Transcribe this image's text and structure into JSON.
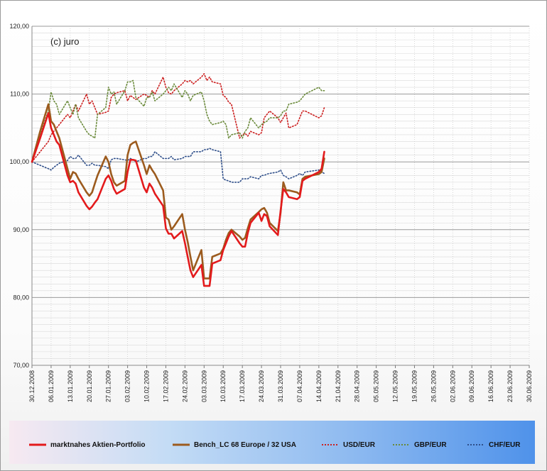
{
  "watermark": "(c) juro",
  "colors": {
    "portfolio": "#e31a1c",
    "bench": "#9c5b1e",
    "usd": "#cc2020",
    "gbp": "#6a8a3a",
    "chf": "#2f4f8a",
    "grid": "#9a9a9a",
    "minor_grid": "#d9d9d9"
  },
  "chart_data": {
    "type": "line",
    "ylim": [
      70,
      120
    ],
    "y_ticks": [
      "70,00",
      "80,00",
      "90,00",
      "100,00",
      "110,00",
      "120,00"
    ],
    "x_range": [
      "2008-12-30",
      "2009-06-30"
    ],
    "x_ticks": [
      "30.12.2008",
      "06.01.2009",
      "13.01.2009",
      "20.01.2009",
      "27.01.2009",
      "03.02.2009",
      "10.02.2009",
      "17.02.2009",
      "24.02.2009",
      "03.03.2009",
      "10.03.2009",
      "17.03.2009",
      "24.03.2009",
      "31.03.2009",
      "07.04.2009",
      "14.04.2009",
      "21.04.2009",
      "28.04.2009",
      "05.05.2009",
      "12.05.2009",
      "19.05.2009",
      "26.05.2009",
      "02.06.2009",
      "09.06.2009",
      "16.06.2009",
      "23.06.2009",
      "30.06.2009"
    ],
    "grid": true,
    "legend_position": "bottom",
    "series": [
      {
        "name": "marktnahes Aktien-Portfolio",
        "style": "solid",
        "x": [
          "2008-12-30",
          "2009-01-02",
          "2009-01-05",
          "2009-01-06",
          "2009-01-07",
          "2009-01-08",
          "2009-01-09",
          "2009-01-12",
          "2009-01-13",
          "2009-01-14",
          "2009-01-15",
          "2009-01-16",
          "2009-01-19",
          "2009-01-20",
          "2009-01-21",
          "2009-01-22",
          "2009-01-23",
          "2009-01-26",
          "2009-01-27",
          "2009-01-28",
          "2009-01-29",
          "2009-01-30",
          "2009-02-02",
          "2009-02-03",
          "2009-02-04",
          "2009-02-05",
          "2009-02-06",
          "2009-02-09",
          "2009-02-10",
          "2009-02-11",
          "2009-02-12",
          "2009-02-13",
          "2009-02-16",
          "2009-02-17",
          "2009-02-18",
          "2009-02-19",
          "2009-02-20",
          "2009-02-23",
          "2009-02-24",
          "2009-02-25",
          "2009-02-26",
          "2009-02-27",
          "2009-03-02",
          "2009-03-03",
          "2009-03-04",
          "2009-03-05",
          "2009-03-06",
          "2009-03-09",
          "2009-03-10",
          "2009-03-11",
          "2009-03-12",
          "2009-03-13",
          "2009-03-16",
          "2009-03-17",
          "2009-03-18",
          "2009-03-19",
          "2009-03-20",
          "2009-03-23",
          "2009-03-24",
          "2009-03-25",
          "2009-03-26",
          "2009-03-27",
          "2009-03-30",
          "2009-03-31",
          "2009-04-01",
          "2009-04-02",
          "2009-04-03",
          "2009-04-06",
          "2009-04-07",
          "2009-04-08",
          "2009-04-09",
          "2009-04-14",
          "2009-04-15",
          "2009-04-16"
        ],
        "y": [
          100.0,
          103.5,
          107.2,
          105.0,
          104.0,
          103.0,
          102.5,
          98.0,
          97.0,
          97.2,
          96.8,
          95.5,
          93.5,
          93.0,
          93.4,
          94.0,
          94.5,
          97.5,
          98.0,
          97.2,
          96.0,
          95.3,
          96.0,
          98.5,
          100.3,
          100.3,
          100.2,
          96.2,
          95.5,
          96.8,
          96.2,
          95.3,
          93.5,
          90.2,
          89.4,
          89.4,
          88.7,
          89.8,
          88.0,
          86.0,
          84.0,
          83.0,
          84.8,
          81.7,
          81.7,
          81.7,
          85.0,
          85.5,
          87.0,
          88.0,
          89.0,
          89.8,
          88.0,
          87.5,
          87.5,
          89.5,
          91.0,
          92.5,
          91.3,
          92.3,
          92.0,
          90.5,
          89.2,
          92.8,
          96.0,
          95.5,
          94.8,
          94.5,
          94.8,
          97.2,
          97.5,
          98.5,
          99.0,
          101.5
        ]
      },
      {
        "name": "Bench_LC  68 Europe / 32 USA",
        "style": "solid",
        "x": [
          "2008-12-30",
          "2009-01-02",
          "2009-01-05",
          "2009-01-06",
          "2009-01-07",
          "2009-01-08",
          "2009-01-09",
          "2009-01-12",
          "2009-01-13",
          "2009-01-14",
          "2009-01-15",
          "2009-01-16",
          "2009-01-19",
          "2009-01-20",
          "2009-01-21",
          "2009-01-22",
          "2009-01-23",
          "2009-01-26",
          "2009-01-27",
          "2009-01-28",
          "2009-01-29",
          "2009-01-30",
          "2009-02-02",
          "2009-02-03",
          "2009-02-04",
          "2009-02-05",
          "2009-02-06",
          "2009-02-09",
          "2009-02-10",
          "2009-02-11",
          "2009-02-12",
          "2009-02-13",
          "2009-02-16",
          "2009-02-17",
          "2009-02-18",
          "2009-02-19",
          "2009-02-20",
          "2009-02-23",
          "2009-02-24",
          "2009-02-25",
          "2009-02-26",
          "2009-02-27",
          "2009-03-02",
          "2009-03-03",
          "2009-03-04",
          "2009-03-05",
          "2009-03-06",
          "2009-03-09",
          "2009-03-10",
          "2009-03-11",
          "2009-03-12",
          "2009-03-13",
          "2009-03-16",
          "2009-03-17",
          "2009-03-18",
          "2009-03-19",
          "2009-03-20",
          "2009-03-23",
          "2009-03-24",
          "2009-03-25",
          "2009-03-26",
          "2009-03-27",
          "2009-03-30",
          "2009-03-31",
          "2009-04-01",
          "2009-04-02",
          "2009-04-03",
          "2009-04-06",
          "2009-04-07",
          "2009-04-08",
          "2009-04-09",
          "2009-04-14",
          "2009-04-15",
          "2009-04-16"
        ],
        "y": [
          100.0,
          104.5,
          108.5,
          106.0,
          105.5,
          104.5,
          103.5,
          99.0,
          97.5,
          98.5,
          98.3,
          97.5,
          95.5,
          95.0,
          95.5,
          96.8,
          98.0,
          100.8,
          100.0,
          98.2,
          97.0,
          96.5,
          97.2,
          101.0,
          102.5,
          102.8,
          103.0,
          99.5,
          98.2,
          99.5,
          98.8,
          98.2,
          95.8,
          91.8,
          91.5,
          90.0,
          90.5,
          92.3,
          90.0,
          88.2,
          86.0,
          84.0,
          87.0,
          82.8,
          82.8,
          82.8,
          86.0,
          86.5,
          87.2,
          88.5,
          89.5,
          90.0,
          89.0,
          88.5,
          88.8,
          90.2,
          91.5,
          92.6,
          93.0,
          93.2,
          92.5,
          91.0,
          89.8,
          92.5,
          97.0,
          95.8,
          95.8,
          95.5,
          95.2,
          97.5,
          97.8,
          98.2,
          98.5,
          100.5
        ]
      },
      {
        "name": "USD/EUR",
        "style": "dotted",
        "x": [
          "2008-12-30",
          "2009-01-02",
          "2009-01-05",
          "2009-01-06",
          "2009-01-07",
          "2009-01-08",
          "2009-01-09",
          "2009-01-12",
          "2009-01-13",
          "2009-01-14",
          "2009-01-15",
          "2009-01-16",
          "2009-01-19",
          "2009-01-20",
          "2009-01-21",
          "2009-01-22",
          "2009-01-23",
          "2009-01-26",
          "2009-01-27",
          "2009-01-28",
          "2009-01-29",
          "2009-01-30",
          "2009-02-02",
          "2009-02-03",
          "2009-02-04",
          "2009-02-05",
          "2009-02-06",
          "2009-02-09",
          "2009-02-10",
          "2009-02-11",
          "2009-02-12",
          "2009-02-13",
          "2009-02-16",
          "2009-02-17",
          "2009-02-18",
          "2009-02-19",
          "2009-02-20",
          "2009-02-23",
          "2009-02-24",
          "2009-02-25",
          "2009-02-26",
          "2009-02-27",
          "2009-03-02",
          "2009-03-03",
          "2009-03-04",
          "2009-03-05",
          "2009-03-06",
          "2009-03-09",
          "2009-03-10",
          "2009-03-11",
          "2009-03-12",
          "2009-03-13",
          "2009-03-16",
          "2009-03-17",
          "2009-03-18",
          "2009-03-19",
          "2009-03-20",
          "2009-03-23",
          "2009-03-24",
          "2009-03-25",
          "2009-03-26",
          "2009-03-27",
          "2009-03-30",
          "2009-03-31",
          "2009-04-01",
          "2009-04-02",
          "2009-04-03",
          "2009-04-06",
          "2009-04-07",
          "2009-04-08",
          "2009-04-09",
          "2009-04-14",
          "2009-04-15",
          "2009-04-16"
        ],
        "y": [
          100.0,
          101.5,
          103.0,
          104.0,
          104.5,
          105.0,
          105.5,
          107.0,
          106.5,
          107.5,
          108.5,
          107.5,
          110.0,
          108.5,
          109.0,
          108.0,
          107.0,
          107.3,
          107.5,
          109.5,
          110.0,
          110.2,
          110.5,
          109.0,
          109.8,
          109.5,
          109.2,
          110.0,
          109.8,
          109.5,
          110.5,
          110.0,
          112.5,
          111.0,
          110.2,
          110.0,
          110.5,
          111.5,
          112.0,
          111.8,
          112.0,
          111.5,
          112.5,
          113.0,
          112.0,
          112.5,
          111.8,
          111.5,
          109.8,
          109.5,
          108.8,
          108.5,
          103.5,
          104.0,
          104.2,
          103.8,
          104.5,
          104.0,
          104.3,
          106.5,
          107.0,
          107.5,
          106.5,
          105.8,
          106.5,
          107.2,
          105.0,
          105.5,
          106.5,
          107.5,
          107.5,
          106.5,
          106.8,
          108.0
        ]
      },
      {
        "name": "GBP/EUR",
        "style": "dotted",
        "x": [
          "2008-12-30",
          "2009-01-02",
          "2009-01-05",
          "2009-01-06",
          "2009-01-07",
          "2009-01-08",
          "2009-01-09",
          "2009-01-12",
          "2009-01-13",
          "2009-01-14",
          "2009-01-15",
          "2009-01-16",
          "2009-01-19",
          "2009-01-20",
          "2009-01-21",
          "2009-01-22",
          "2009-01-23",
          "2009-01-26",
          "2009-01-27",
          "2009-01-28",
          "2009-01-29",
          "2009-01-30",
          "2009-02-02",
          "2009-02-03",
          "2009-02-04",
          "2009-02-05",
          "2009-02-06",
          "2009-02-09",
          "2009-02-10",
          "2009-02-11",
          "2009-02-12",
          "2009-02-13",
          "2009-02-16",
          "2009-02-17",
          "2009-02-18",
          "2009-02-19",
          "2009-02-20",
          "2009-02-23",
          "2009-02-24",
          "2009-02-25",
          "2009-02-26",
          "2009-02-27",
          "2009-03-02",
          "2009-03-03",
          "2009-03-04",
          "2009-03-05",
          "2009-03-06",
          "2009-03-09",
          "2009-03-10",
          "2009-03-11",
          "2009-03-12",
          "2009-03-13",
          "2009-03-16",
          "2009-03-17",
          "2009-03-18",
          "2009-03-19",
          "2009-03-20",
          "2009-03-23",
          "2009-03-24",
          "2009-03-25",
          "2009-03-26",
          "2009-03-27",
          "2009-03-30",
          "2009-03-31",
          "2009-04-01",
          "2009-04-02",
          "2009-04-03",
          "2009-04-06",
          "2009-04-07",
          "2009-04-08",
          "2009-04-09",
          "2009-04-14",
          "2009-04-15",
          "2009-04-16"
        ],
        "y": [
          100.0,
          104.0,
          107.5,
          110.3,
          109.0,
          108.5,
          107.0,
          109.0,
          108.0,
          107.0,
          108.5,
          106.5,
          104.5,
          104.0,
          103.8,
          103.5,
          107.0,
          108.0,
          111.0,
          110.0,
          110.3,
          108.5,
          110.5,
          111.8,
          111.8,
          112.0,
          109.5,
          108.2,
          109.5,
          109.5,
          110.3,
          109.0,
          110.0,
          110.5,
          111.0,
          110.5,
          111.5,
          109.5,
          110.5,
          110.0,
          109.0,
          109.8,
          110.3,
          109.0,
          107.0,
          106.0,
          105.5,
          105.8,
          106.0,
          105.5,
          103.5,
          104.0,
          104.3,
          103.5,
          104.5,
          105.0,
          106.5,
          105.0,
          105.5,
          105.8,
          106.0,
          106.5,
          106.5,
          106.8,
          107.5,
          107.5,
          108.5,
          108.8,
          109.0,
          109.5,
          110.0,
          111.0,
          110.5,
          110.5
        ]
      },
      {
        "name": "CHF/EUR",
        "style": "dotted",
        "x": [
          "2008-12-30",
          "2009-01-02",
          "2009-01-05",
          "2009-01-06",
          "2009-01-07",
          "2009-01-08",
          "2009-01-09",
          "2009-01-12",
          "2009-01-13",
          "2009-01-14",
          "2009-01-15",
          "2009-01-16",
          "2009-01-19",
          "2009-01-20",
          "2009-01-21",
          "2009-01-22",
          "2009-01-23",
          "2009-01-26",
          "2009-01-27",
          "2009-01-28",
          "2009-01-29",
          "2009-01-30",
          "2009-02-02",
          "2009-02-03",
          "2009-02-04",
          "2009-02-05",
          "2009-02-06",
          "2009-02-09",
          "2009-02-10",
          "2009-02-11",
          "2009-02-12",
          "2009-02-13",
          "2009-02-16",
          "2009-02-17",
          "2009-02-18",
          "2009-02-19",
          "2009-02-20",
          "2009-02-23",
          "2009-02-24",
          "2009-02-25",
          "2009-02-26",
          "2009-02-27",
          "2009-03-02",
          "2009-03-03",
          "2009-03-04",
          "2009-03-05",
          "2009-03-06",
          "2009-03-09",
          "2009-03-10",
          "2009-03-11",
          "2009-03-12",
          "2009-03-13",
          "2009-03-16",
          "2009-03-17",
          "2009-03-18",
          "2009-03-19",
          "2009-03-20",
          "2009-03-23",
          "2009-03-24",
          "2009-03-25",
          "2009-03-26",
          "2009-03-27",
          "2009-03-30",
          "2009-03-31",
          "2009-04-01",
          "2009-04-02",
          "2009-04-03",
          "2009-04-06",
          "2009-04-07",
          "2009-04-08",
          "2009-04-09",
          "2009-04-14",
          "2009-04-15",
          "2009-04-16"
        ],
        "y": [
          100.0,
          99.5,
          99.0,
          98.8,
          99.2,
          99.5,
          99.8,
          100.2,
          100.8,
          100.5,
          100.5,
          101.0,
          99.5,
          99.5,
          99.8,
          99.5,
          99.5,
          99.3,
          99.0,
          100.3,
          100.5,
          100.5,
          100.3,
          100.2,
          100.5,
          100.3,
          100.0,
          100.5,
          100.5,
          100.8,
          100.8,
          101.5,
          100.5,
          100.5,
          100.5,
          100.8,
          100.3,
          100.5,
          100.8,
          100.8,
          100.8,
          101.5,
          101.5,
          101.8,
          101.8,
          102.0,
          101.8,
          101.5,
          97.5,
          97.3,
          97.2,
          97.0,
          97.0,
          97.5,
          97.5,
          97.5,
          97.8,
          97.5,
          98.0,
          98.0,
          98.2,
          98.3,
          98.5,
          98.8,
          98.0,
          97.8,
          97.5,
          98.0,
          98.3,
          98.0,
          98.5,
          98.8,
          98.5,
          98.3
        ]
      }
    ]
  },
  "legend": {
    "portfolio": "marktnahes Aktien-Portfolio",
    "bench": "Bench_LC  68 Europe / 32 USA",
    "usd": "USD/EUR",
    "gbp": "GBP/EUR",
    "chf": "CHF/EUR"
  }
}
